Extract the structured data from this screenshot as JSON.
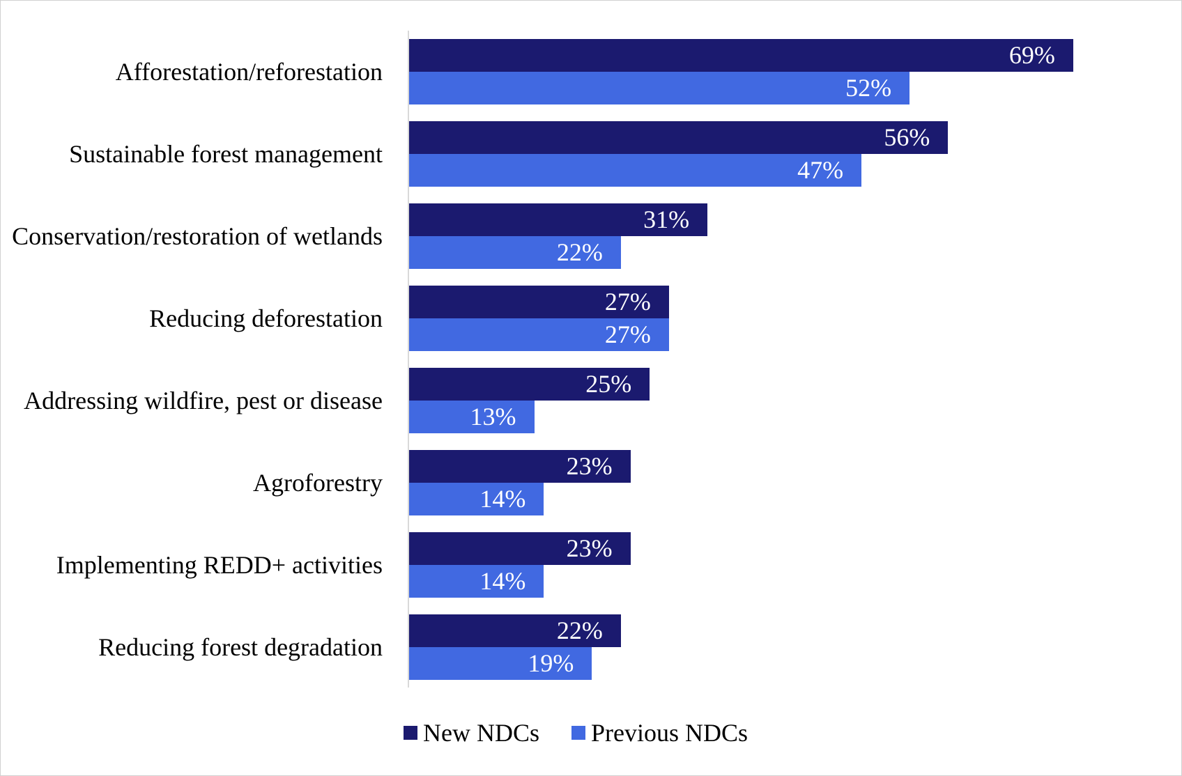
{
  "chart_data": {
    "type": "bar",
    "orientation": "horizontal",
    "title": "",
    "xlabel": "",
    "ylabel": "",
    "categories": [
      "Afforestation/reforestation",
      "Sustainable forest management",
      "Conservation/restoration of wetlands",
      "Reducing deforestation",
      "Addressing wildfire, pest or disease",
      "Agroforestry",
      "Implementing REDD+ activities",
      "Reducing forest degradation"
    ],
    "series": [
      {
        "name": "New NDCs",
        "color": "#1b1a6f",
        "values": [
          69,
          56,
          31,
          27,
          25,
          23,
          23,
          22
        ]
      },
      {
        "name": "Previous NDCs",
        "color": "#4169e1",
        "values": [
          52,
          47,
          22,
          27,
          13,
          14,
          14,
          19
        ]
      }
    ],
    "value_format": "percent",
    "xlim": [
      0,
      79
    ],
    "grid": false,
    "legend": "bottom"
  }
}
